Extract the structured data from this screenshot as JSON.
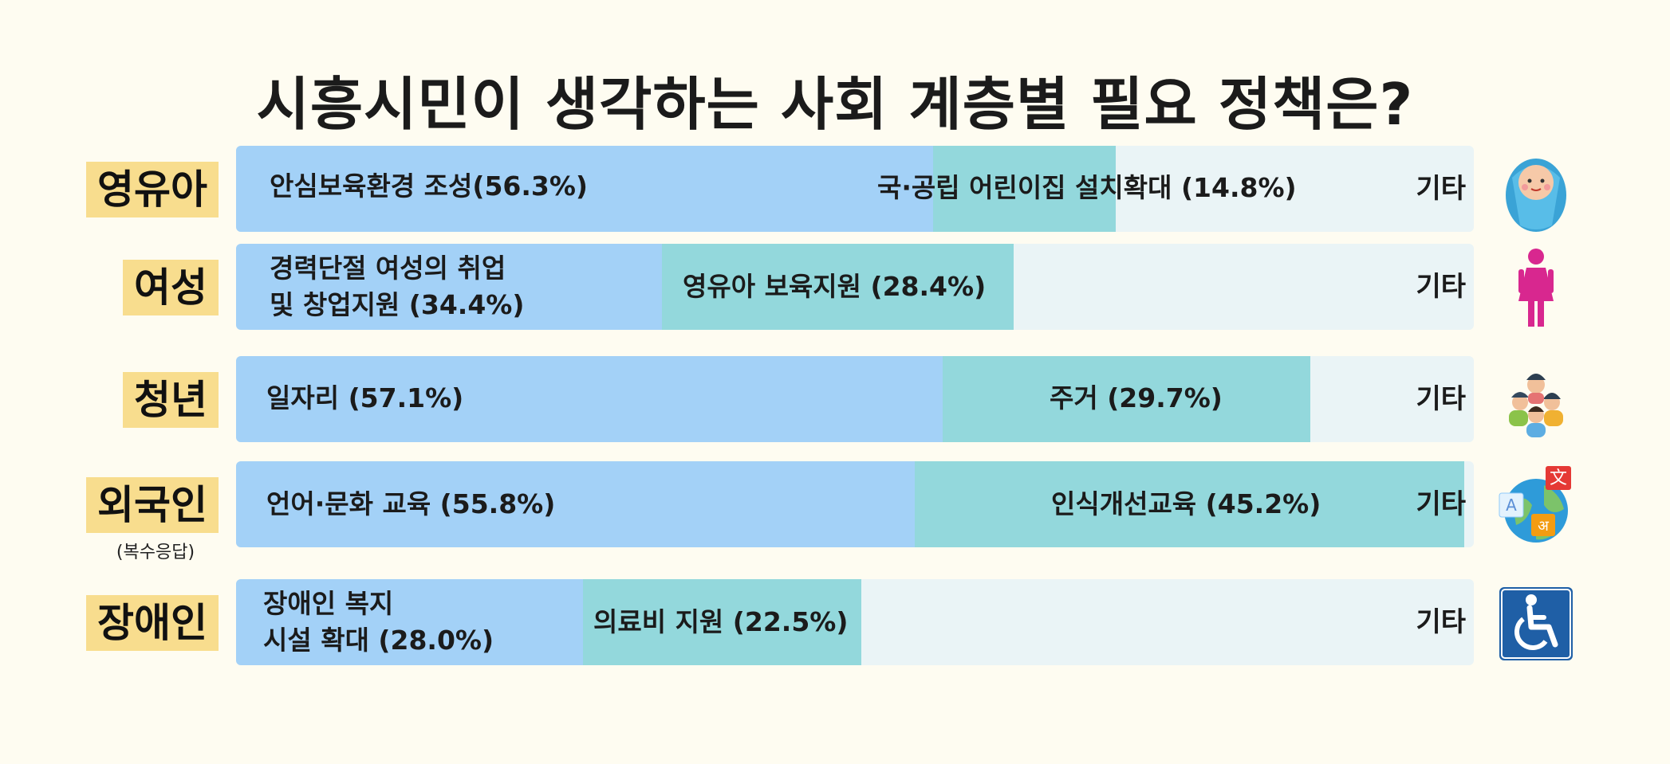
{
  "title": "시흥시민이 생각하는 사회 계층별 필요 정책은?",
  "colors": {
    "background": "#fefcf1",
    "category_tag": "#f8dd8e",
    "first_policy": "#a3d1f7",
    "second_policy": "#93d8dc",
    "other": "#eaf4f6"
  },
  "chart_data": {
    "type": "bar",
    "stacked": true,
    "orientation": "horizontal",
    "title": "시흥시민이 생각하는 사회 계층별 필요 정책은?",
    "categories": [
      "영유아",
      "여성",
      "청년",
      "외국인",
      "장애인"
    ],
    "rows": [
      {
        "category": "영유아",
        "note": "",
        "icon": "swaddled-baby-icon",
        "segments": [
          {
            "label": "안심보육환경 조성(56.3%)",
            "value": 56.3
          },
          {
            "label": "국·공립 어린이집 설치확대 (14.8%)",
            "value": 14.8
          }
        ],
        "other_label": "기타"
      },
      {
        "category": "여성",
        "note": "",
        "icon": "woman-icon",
        "segments": [
          {
            "label": "경력단절 여성의 취업\n및 창업지원 (34.4%)",
            "value": 34.4
          },
          {
            "label": "영유아 보육지원 (28.4%)",
            "value": 28.4
          }
        ],
        "other_label": "기타"
      },
      {
        "category": "청년",
        "note": "",
        "icon": "young-people-group-icon",
        "segments": [
          {
            "label": "일자리 (57.1%)",
            "value": 57.1
          },
          {
            "label": "주거 (29.7%)",
            "value": 29.7
          }
        ],
        "other_label": "기타"
      },
      {
        "category": "외국인",
        "note": "(복수응답)",
        "icon": "language-globe-icon",
        "segments": [
          {
            "label": "언어·문화 교육 (55.8%)",
            "value": 55.8
          },
          {
            "label": "인식개선교육 (45.2%)",
            "value": 45.2
          }
        ],
        "other_label": "기타"
      },
      {
        "category": "장애인",
        "note": "",
        "icon": "wheelchair-icon",
        "segments": [
          {
            "label": "장애인 복지\n시설 확대 (28.0%)",
            "value": 28.0
          },
          {
            "label": "의료비 지원 (22.5%)",
            "value": 22.5
          }
        ],
        "other_label": "기타"
      }
    ]
  }
}
